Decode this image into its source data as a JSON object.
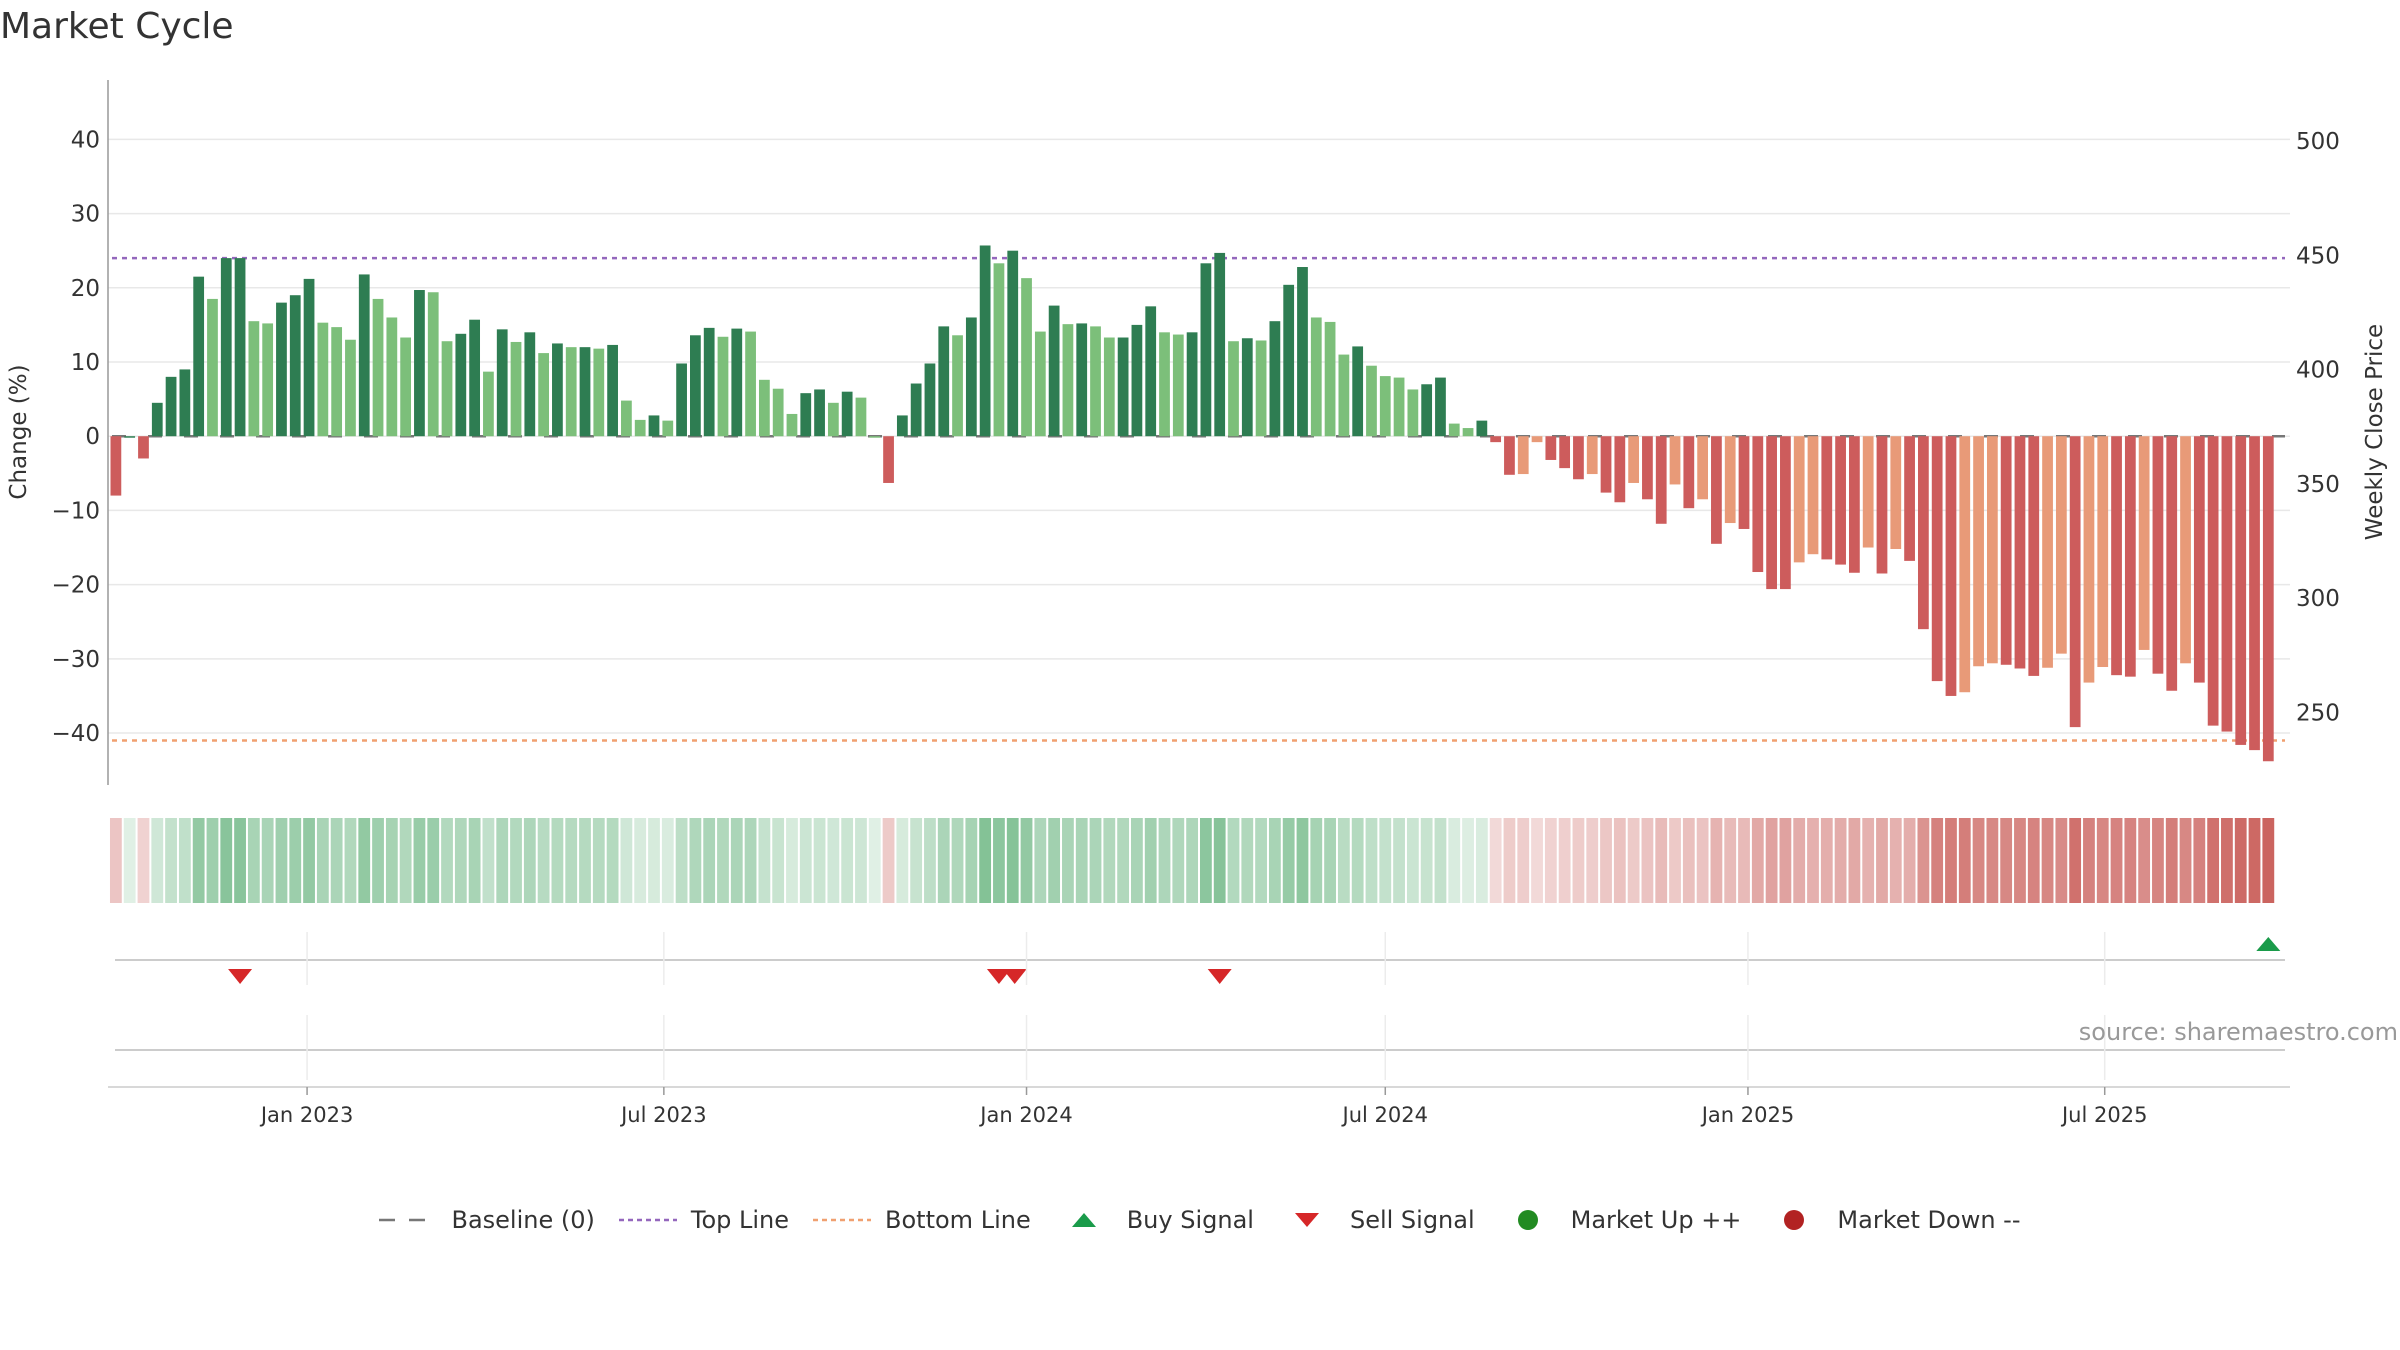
{
  "title": "Market Cycle",
  "source": "source: sharemaestro.com",
  "colors": {
    "pos_strong": "#2e7d52",
    "pos_light": "#7cbf7a",
    "neg_strong": "#cd5c5c",
    "neg_light": "#e89a78",
    "top_line": "#9467bd",
    "bottom_line": "#f0a070",
    "baseline": "#777777",
    "buy": "#1a9b4a",
    "sell": "#d62728",
    "market_up": "#228b22",
    "market_down": "#b22222"
  },
  "legend": [
    {
      "label": "Baseline (0)",
      "icon": "dash-line"
    },
    {
      "label": "Top Line",
      "icon": "dotted-purple-line"
    },
    {
      "label": "Bottom Line",
      "icon": "dotted-orange-line"
    },
    {
      "label": "Buy Signal",
      "icon": "triangle-up"
    },
    {
      "label": "Sell Signal",
      "icon": "triangle-down"
    },
    {
      "label": "Market Up ++",
      "icon": "circle-green"
    },
    {
      "label": "Market Down --",
      "icon": "circle-red"
    }
  ],
  "chart_data": {
    "type": "bar",
    "ylabel": "Change (%)",
    "y2label": "Weekly Close Price",
    "ylim": [
      -47,
      48
    ],
    "yticks": [
      40,
      30,
      20,
      10,
      0,
      -10,
      -20,
      -30,
      -40
    ],
    "ytick_labels": [
      "40",
      "30",
      "20",
      "10",
      "0",
      "−10",
      "−20",
      "−30",
      "−40"
    ],
    "y2lim": [
      218.3,
      526.7
    ],
    "y2ticks": [
      500,
      450,
      400,
      350,
      300,
      250
    ],
    "y2tick_labels": [
      "500",
      "450",
      "400",
      "350",
      "300",
      "250"
    ],
    "top_line": 24,
    "bottom_line": -41,
    "baseline": 0,
    "start_date": "2022-09-26",
    "week_interval_days": 7,
    "xticks": [
      "2023-01-01",
      "2023-07-01",
      "2024-01-01",
      "2024-07-01",
      "2025-01-01",
      "2025-07-01"
    ],
    "xtick_labels": [
      "Jan 2023",
      "Jul 2023",
      "Jan 2024",
      "Jul 2024",
      "Jan 2025",
      "Jul 2025"
    ],
    "xlim": [
      "2022-09-22",
      "2025-10-03"
    ],
    "values": [
      -8,
      0,
      -3,
      4.5,
      8,
      9,
      21.5,
      18.5,
      24,
      24,
      15.5,
      15.2,
      18,
      19,
      21.2,
      15.3,
      14.7,
      13,
      21.8,
      18.5,
      16,
      13.3,
      19.7,
      19.4,
      12.8,
      13.8,
      15.7,
      8.7,
      14.4,
      12.7,
      14,
      11.2,
      12.5,
      12,
      12,
      11.8,
      12.3,
      4.8,
      2.2,
      2.8,
      2.1,
      9.8,
      13.6,
      14.6,
      13.4,
      14.5,
      14.1,
      7.6,
      6.4,
      3,
      5.8,
      6.3,
      4.5,
      6,
      5.2,
      0,
      -6.3,
      2.8,
      7.1,
      9.8,
      14.8,
      13.6,
      16,
      25.7,
      23.3,
      25,
      21.3,
      14.1,
      17.6,
      15.1,
      15.2,
      14.8,
      13.3,
      13.3,
      15,
      17.5,
      14,
      13.7,
      14,
      23.3,
      24.7,
      12.8,
      13.2,
      12.9,
      15.5,
      20.4,
      22.8,
      16,
      15.4,
      11,
      12.1,
      9.5,
      8.1,
      7.9,
      6.3,
      7,
      7.9,
      1.7,
      1.1,
      2.1,
      -0.8,
      -5.2,
      -5.1,
      -0.8,
      -3.2,
      -4.3,
      -5.8,
      -5.1,
      -7.6,
      -8.9,
      -6.3,
      -8.5,
      -11.8,
      -6.5,
      -9.7,
      -8.5,
      -14.5,
      -11.7,
      -12.5,
      -18.3,
      -20.6,
      -20.6,
      -17,
      -15.9,
      -16.6,
      -17.3,
      -18.4,
      -15,
      -18.5,
      -15.2,
      -16.8,
      -26,
      -33,
      -35,
      -34.5,
      -31,
      -30.6,
      -30.8,
      -31.3,
      -32.3,
      -31.2,
      -29.3,
      -39.2,
      -33.2,
      -31.1,
      -32.2,
      -32.4,
      -28.8,
      -32,
      -34.3,
      -30.6,
      -33.2,
      -39,
      -39.8,
      -41.6,
      -42.3,
      -43.8
    ],
    "signals": [
      {
        "type": "sell",
        "date": "2022-11-28"
      },
      {
        "type": "sell",
        "date": "2023-12-18"
      },
      {
        "type": "sell",
        "date": "2023-12-26"
      },
      {
        "type": "sell",
        "date": "2024-04-08"
      },
      {
        "type": "buy",
        "date": "2025-09-22"
      }
    ]
  }
}
